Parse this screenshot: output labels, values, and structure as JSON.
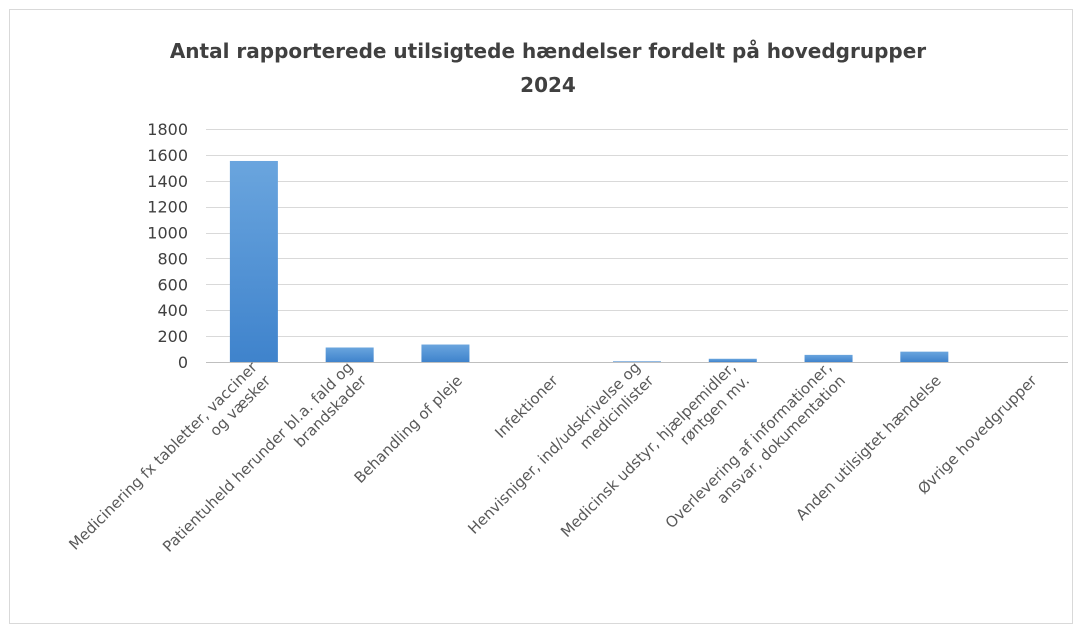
{
  "chart_data": {
    "type": "bar",
    "title": [
      "Antal rapporterede utilsigtede hændelser fordelt på hovedgrupper",
      "2024"
    ],
    "xlabel": "",
    "ylabel": "",
    "ylim": [
      0,
      1800
    ],
    "yticks": [
      "0",
      "200",
      "400",
      "600",
      "800",
      "1000",
      "1200",
      "1400",
      "1600",
      "1800"
    ],
    "grid": true,
    "legend": "none",
    "bar_color": "#5b9bd5",
    "categories": [
      [
        "Medicinering fx tabletter, vacciner",
        "og væsker"
      ],
      [
        "Patientuheld herunder bl.a. fald og",
        "brandskader"
      ],
      [
        "Behandling of pleje"
      ],
      [
        "Infektioner"
      ],
      [
        "Henvisniger, ind/udskrivelse og",
        "medicinlister"
      ],
      [
        "Medicinsk udstyr, hjælpemidler,",
        "røntgen mv."
      ],
      [
        "Overlevering af informationer,",
        "ansvar, dokumentation"
      ],
      [
        "Anden utilsigtet hændelse"
      ],
      [
        "Øvrige hovedgrupper"
      ]
    ],
    "values": [
      1553,
      112,
      135,
      0,
      5,
      25,
      55,
      80,
      0
    ]
  }
}
